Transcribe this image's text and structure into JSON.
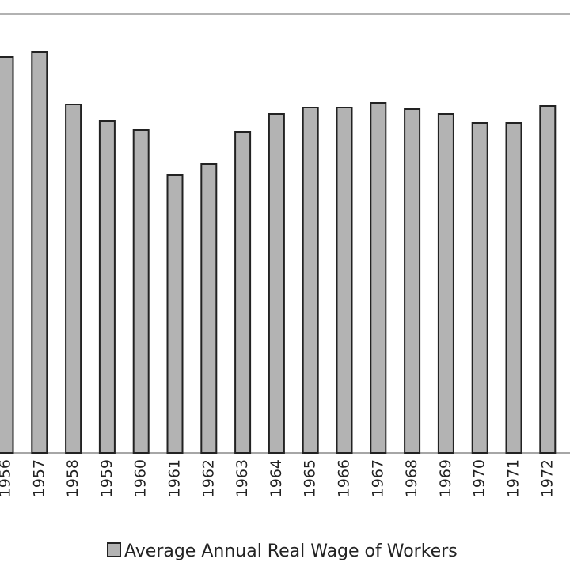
{
  "chart_data": {
    "type": "bar",
    "categories": [
      "1956",
      "1957",
      "1958",
      "1959",
      "1960",
      "1961",
      "1962",
      "1963",
      "1964",
      "1965",
      "1966",
      "1967",
      "1968",
      "1969",
      "1970",
      "1971",
      "1972"
    ],
    "series": [
      {
        "name": "Average Annual Real Wage of Workers",
        "color": "#b3b3b3",
        "values": [
          500,
          506,
          440,
          419,
          408,
          351,
          365,
          405,
          428,
          436,
          436,
          442,
          434,
          428,
          417,
          417,
          438
        ]
      }
    ]
  }
}
